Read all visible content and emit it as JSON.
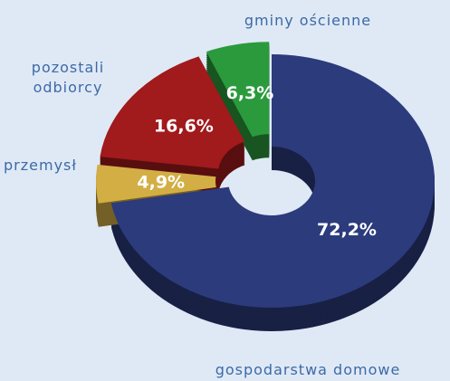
{
  "chart_data": {
    "type": "donut",
    "categories": [
      "gospodarstwa domowe",
      "przemysł",
      "pozostali odbiorcy",
      "gminy ościenne"
    ],
    "values": [
      72.2,
      4.9,
      16.6,
      6.3
    ],
    "value_labels": [
      "72,2%",
      "4,9%",
      "16,6%",
      "6,3%"
    ],
    "colors": [
      "#2b3b7c",
      "#d3ae45",
      "#a11a1c",
      "#2b9a3c"
    ]
  }
}
